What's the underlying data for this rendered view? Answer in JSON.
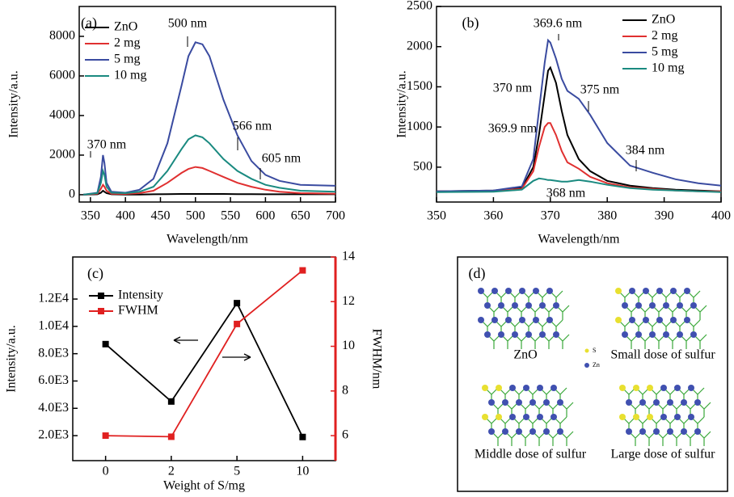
{
  "chart_data": [
    {
      "type": "line",
      "label": "(a)",
      "x_label": "Wavelength/nm",
      "y_label": "Intensity/a.u.",
      "xlim": [
        334,
        700
      ],
      "xticks": [
        350,
        400,
        450,
        500,
        550,
        600,
        650,
        700
      ],
      "ylim": [
        -370,
        9510
      ],
      "yticks": [
        0,
        2000,
        4000,
        6000,
        8000
      ],
      "annotations": [
        "500 nm",
        "370 nm",
        "566 nm",
        "605 nm"
      ],
      "x": [
        340,
        360,
        365,
        368,
        370,
        373,
        380,
        400,
        420,
        440,
        460,
        480,
        490,
        500,
        510,
        520,
        540,
        560,
        580,
        600,
        620,
        650,
        700
      ],
      "series": [
        {
          "name": "ZnO",
          "color": "#000000",
          "values": [
            0,
            20,
            100,
            200,
            150,
            80,
            20,
            10,
            10,
            20,
            30,
            40,
            40,
            40,
            40,
            40,
            40,
            30,
            30,
            20,
            20,
            20,
            20
          ]
        },
        {
          "name": "2 mg",
          "color": "#e03030",
          "values": [
            0,
            50,
            300,
            500,
            400,
            200,
            50,
            40,
            80,
            200,
            600,
            1100,
            1300,
            1400,
            1350,
            1200,
            900,
            600,
            400,
            250,
            150,
            80,
            50
          ]
        },
        {
          "name": "5 mg",
          "color": "#3a4ba0",
          "values": [
            0,
            100,
            900,
            2000,
            1600,
            600,
            150,
            100,
            250,
            800,
            2600,
            5500,
            7000,
            7700,
            7600,
            7000,
            4800,
            3000,
            1700,
            1000,
            700,
            500,
            450
          ]
        },
        {
          "name": "10 mg",
          "color": "#1a8a80",
          "values": [
            0,
            80,
            600,
            1200,
            1000,
            400,
            100,
            80,
            150,
            400,
            1200,
            2300,
            2800,
            3000,
            2900,
            2600,
            1800,
            1200,
            800,
            500,
            350,
            200,
            150
          ]
        }
      ]
    },
    {
      "type": "line",
      "label": "(b)",
      "x_label": "Wavelength/nm",
      "y_label": "Intensity/a.u.",
      "xlim": [
        350,
        400
      ],
      "xticks": [
        350,
        360,
        370,
        380,
        390,
        400
      ],
      "ylim": [
        66,
        2500
      ],
      "yticks": [
        500,
        1000,
        1500,
        2000,
        2500
      ],
      "annotations": [
        "369.6 nm",
        "370 nm",
        "375 nm",
        "369.9 nm",
        "384 nm",
        "368 nm"
      ],
      "x": [
        350,
        360,
        365,
        367,
        368,
        369,
        369.6,
        370,
        371,
        372,
        373,
        375,
        377,
        380,
        384,
        388,
        392,
        396,
        400
      ],
      "series": [
        {
          "name": "ZnO",
          "color": "#000000",
          "values": [
            200,
            210,
            240,
            500,
            900,
            1400,
            1700,
            1740,
            1550,
            1200,
            900,
            600,
            450,
            330,
            270,
            240,
            220,
            210,
            200
          ]
        },
        {
          "name": "2 mg",
          "color": "#e03030",
          "values": [
            200,
            205,
            230,
            450,
            750,
            1000,
            1050,
            1050,
            900,
            700,
            560,
            480,
            380,
            300,
            250,
            230,
            210,
            200,
            200
          ]
        },
        {
          "name": "5 mg",
          "color": "#3a4ba0",
          "values": [
            200,
            210,
            260,
            600,
            1200,
            1800,
            2080,
            2050,
            1850,
            1600,
            1450,
            1350,
            1150,
            800,
            520,
            430,
            350,
            300,
            270
          ]
        },
        {
          "name": "10 mg",
          "color": "#1a8a80",
          "values": [
            190,
            195,
            220,
            330,
            360,
            350,
            340,
            340,
            330,
            320,
            320,
            340,
            320,
            280,
            240,
            220,
            210,
            200,
            190
          ]
        }
      ]
    },
    {
      "type": "dual",
      "label": "(c)",
      "x_label": "Weight of S/mg",
      "y_label": "Intensity/a.u.",
      "y2_label": "FWHM/nm",
      "categories": [
        "0",
        "2",
        "5",
        "10"
      ],
      "ylim": [
        170,
        15080
      ],
      "yticks": [
        {
          "value": 2000,
          "label": "2.0E3"
        },
        {
          "value": 4000,
          "label": "4.0E3"
        },
        {
          "value": 6000,
          "label": "6.0E3"
        },
        {
          "value": 8000,
          "label": "8.0E3"
        },
        {
          "value": 10000,
          "label": "1.0E4"
        },
        {
          "value": 12000,
          "label": "1.2E4"
        }
      ],
      "y2lim": [
        4.88,
        14
      ],
      "y2ticks": [
        6,
        8,
        10,
        12,
        14
      ],
      "series": [
        {
          "name": "Intensity",
          "color": "#000000",
          "values": [
            8700,
            4500,
            11700,
            1900
          ]
        },
        {
          "name": "FWHM",
          "color": "#e02020",
          "axis": "y2",
          "values": [
            6.0,
            5.95,
            11,
            13.4
          ]
        }
      ]
    }
  ],
  "panel_d": {
    "label": "(d)",
    "captions": [
      "ZnO",
      "Small dose of sulfur",
      "Middle dose of sulfur",
      "Large dose of sulfur"
    ],
    "legend": [
      "S",
      "Zn"
    ]
  }
}
